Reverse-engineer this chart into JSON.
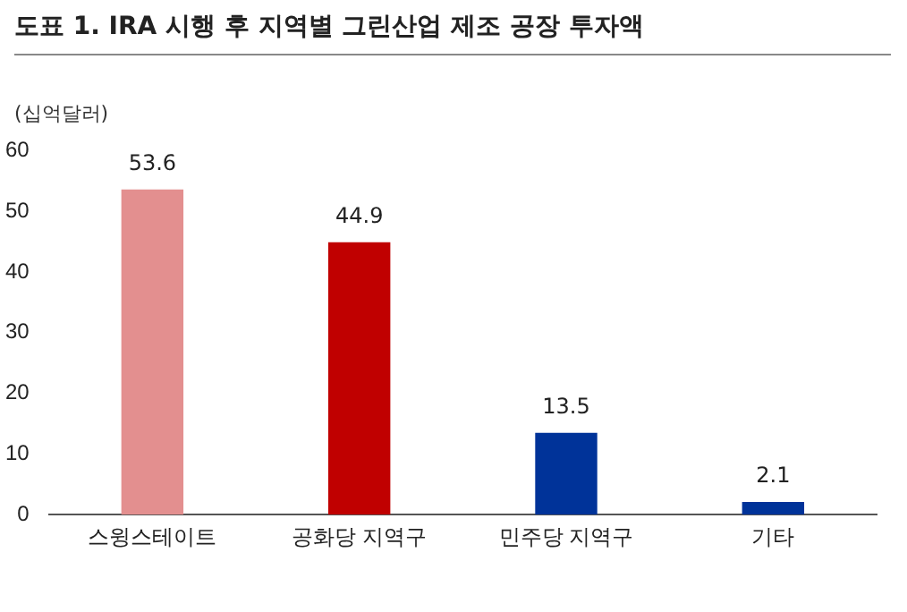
{
  "chart_data": {
    "type": "bar",
    "title": "도표 1.  IRA 시행 후 지역별 그린산업 제조 공장 투자액",
    "ylabel": "(십억달러)",
    "categories": [
      "스윙스테이트",
      "공화당 지역구",
      "민주당 지역구",
      "기타"
    ],
    "values": [
      53.6,
      44.9,
      13.5,
      2.1
    ],
    "colors": [
      "#e38f8f",
      "#c00000",
      "#003399",
      "#003399"
    ],
    "ylim": [
      0,
      60
    ],
    "yticks": [
      0,
      10,
      20,
      30,
      40,
      50,
      60
    ],
    "grid": false,
    "data_labels": true
  }
}
